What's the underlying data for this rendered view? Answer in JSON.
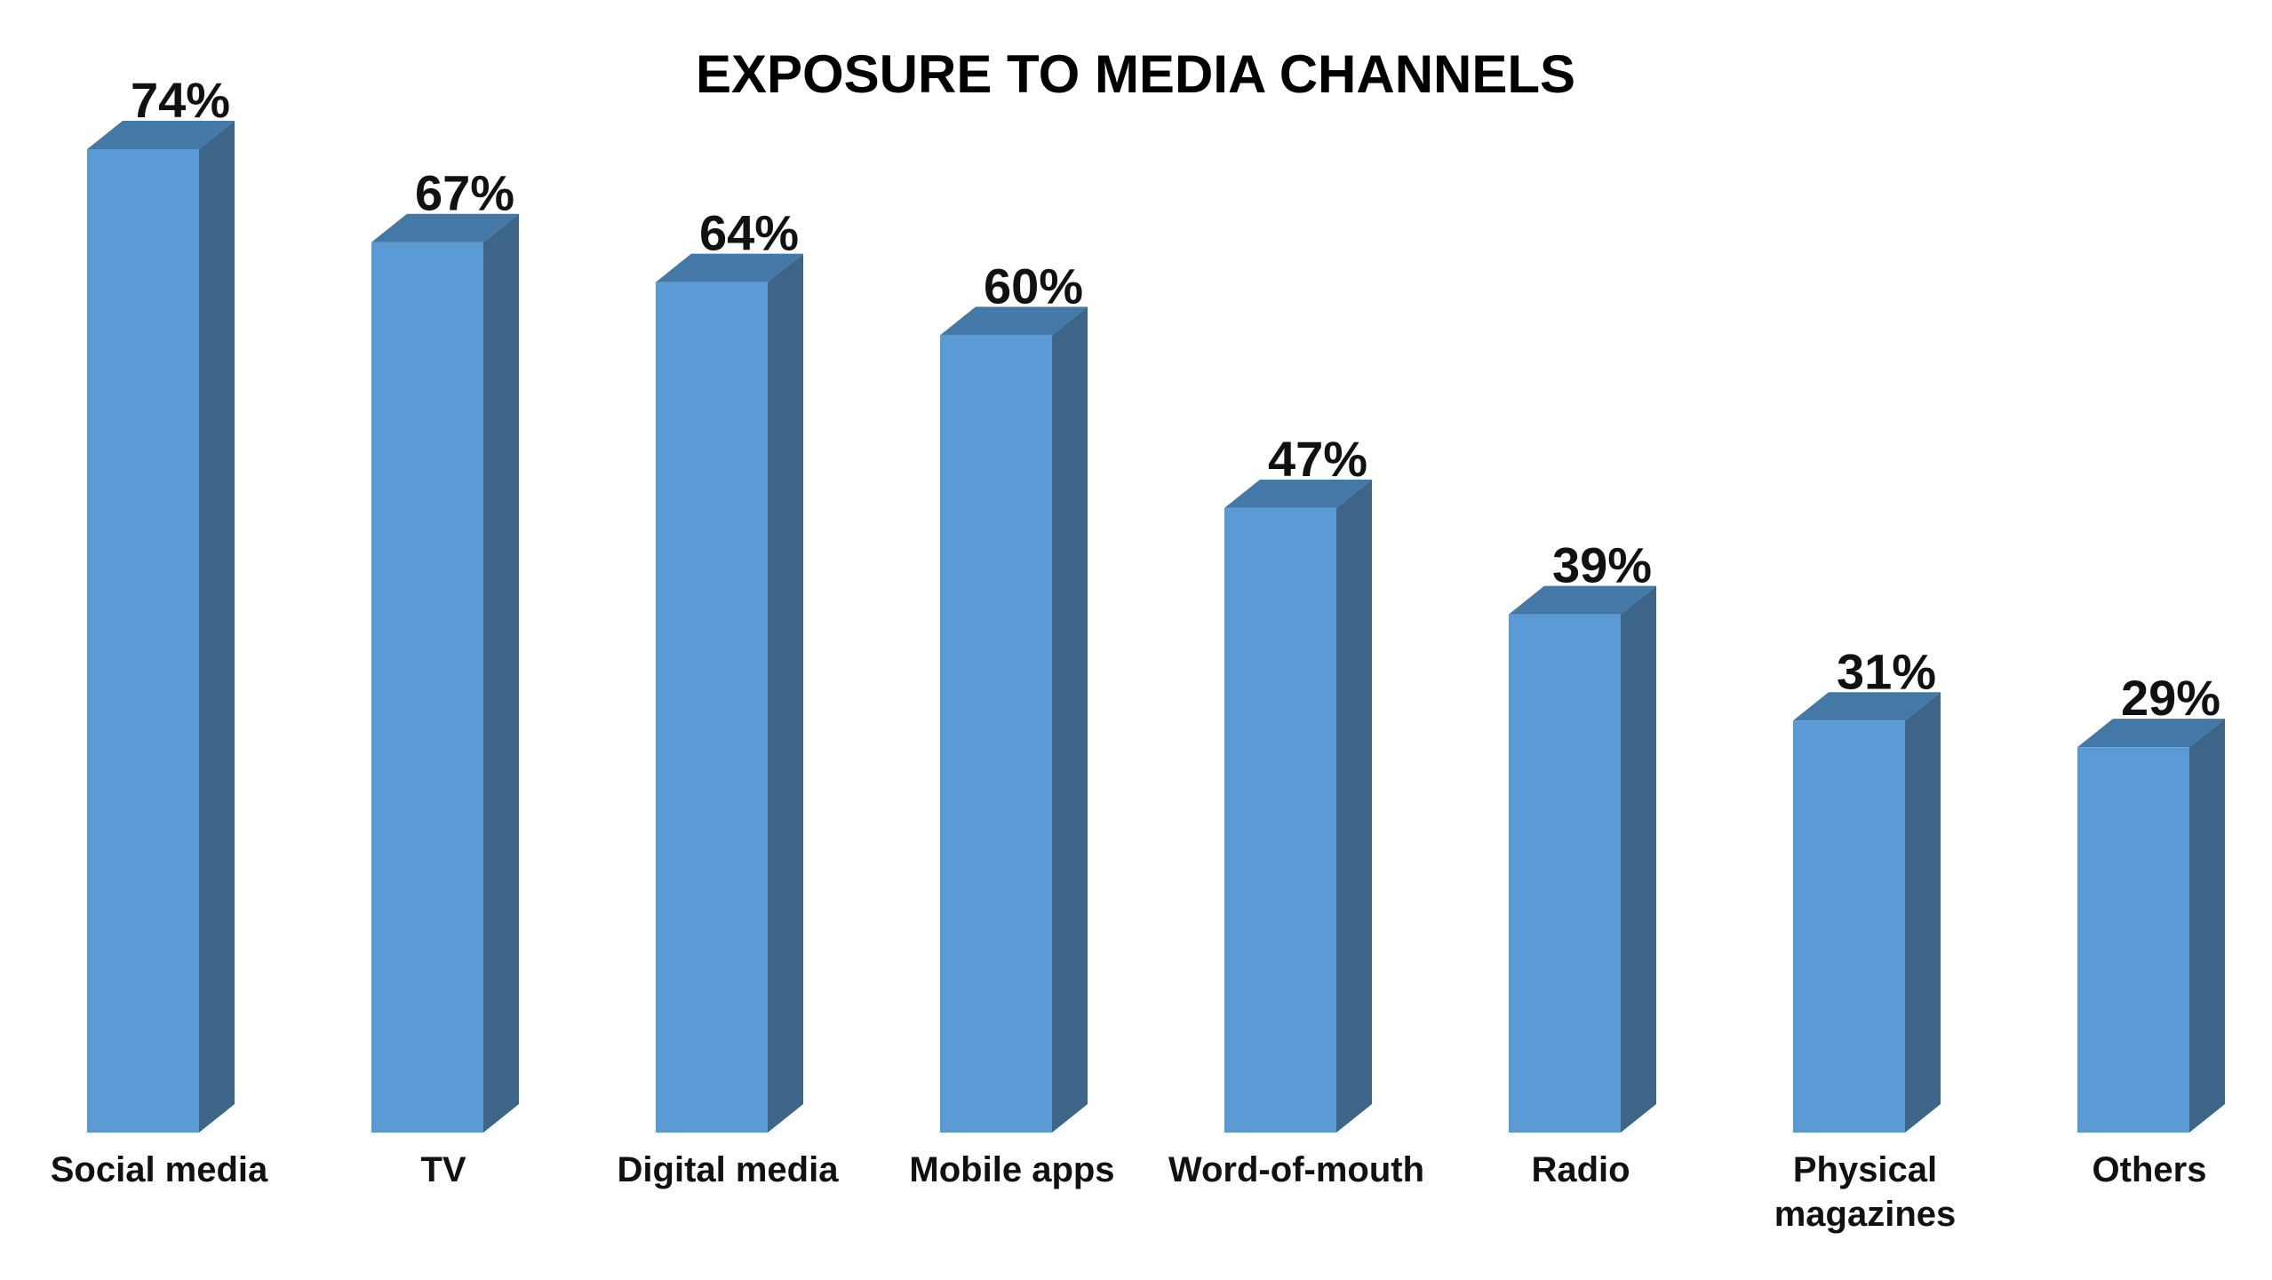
{
  "chart_data": {
    "type": "bar",
    "title": "EXPOSURE TO MEDIA CHANNELS",
    "xlabel": "",
    "ylabel": "",
    "categories": [
      [
        "Social media"
      ],
      [
        "TV"
      ],
      [
        "Digital media"
      ],
      [
        "Mobile apps"
      ],
      [
        "Word-of-mouth"
      ],
      [
        "Radio"
      ],
      [
        "Physical",
        "magazines"
      ],
      [
        "Others"
      ]
    ],
    "values": [
      74,
      67,
      64,
      60,
      47,
      39,
      31,
      29
    ],
    "value_labels": [
      "74%",
      "67%",
      "64%",
      "60%",
      "47%",
      "39%",
      "31%",
      "29%"
    ],
    "value_unit": "%",
    "ylim": [
      0,
      74
    ],
    "grid": false,
    "legend": "none",
    "style": "3d-column",
    "colors": {
      "front": "#5b9bd5",
      "side": "#3d6588",
      "top": "#4479a7"
    }
  }
}
